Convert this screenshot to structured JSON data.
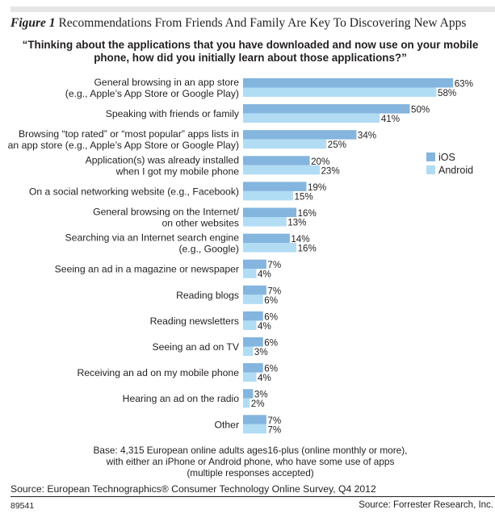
{
  "header": {
    "figure_number": "Figure 1",
    "figure_title": "Recommendations From Friends And Family Are Key To Discovering New Apps"
  },
  "chart_data": {
    "type": "bar",
    "orientation": "horizontal",
    "title": "“Thinking about the applications that you have downloaded and now use on your mobile phone, how did you initially learn about those applications?”",
    "xlabel": "",
    "ylabel": "",
    "xlim": [
      0,
      70
    ],
    "grid": false,
    "legend_position": "right",
    "value_suffix": "%",
    "categories": [
      [
        "General browsing in an app store",
        "(e.g., Apple’s App Store or Google Play)"
      ],
      [
        "Speaking with friends or family"
      ],
      [
        "Browsing “top rated” or “most popular” apps lists in",
        "an app store (e.g., Apple’s App Store or Google Play)"
      ],
      [
        "Application(s) was already installed",
        "when I got my mobile phone"
      ],
      [
        "On a social networking website (e.g., Facebook)"
      ],
      [
        "General browsing on the Internet/",
        "on other websites"
      ],
      [
        "Searching via an Internet search engine",
        "(e.g., Google)"
      ],
      [
        "Seeing an ad in a magazine or newspaper"
      ],
      [
        "Reading blogs"
      ],
      [
        "Reading newsletters"
      ],
      [
        "Seeing an ad on TV"
      ],
      [
        "Receiving an ad on my mobile phone"
      ],
      [
        "Hearing an ad on the radio"
      ],
      [
        "Other"
      ]
    ],
    "series": [
      {
        "name": "iOS",
        "color": "#83b5df",
        "values": [
          63,
          50,
          34,
          20,
          19,
          16,
          14,
          7,
          7,
          6,
          6,
          6,
          3,
          7
        ]
      },
      {
        "name": "Android",
        "color": "#b1dcf4",
        "values": [
          58,
          41,
          25,
          23,
          15,
          13,
          16,
          4,
          6,
          4,
          3,
          4,
          2,
          7
        ]
      }
    ]
  },
  "footer": {
    "base_lines": [
      "Base: 4,315 European online adults ages16-plus (online monthly or more),",
      "with either an iPhone or Android phone, who have some use of apps",
      "(multiple responses accepted)"
    ],
    "source": "Source: European Technographics® Consumer Technology Online Survey, Q4 2012",
    "figure_id": "89541",
    "credit": "Source: Forrester Research, Inc."
  }
}
